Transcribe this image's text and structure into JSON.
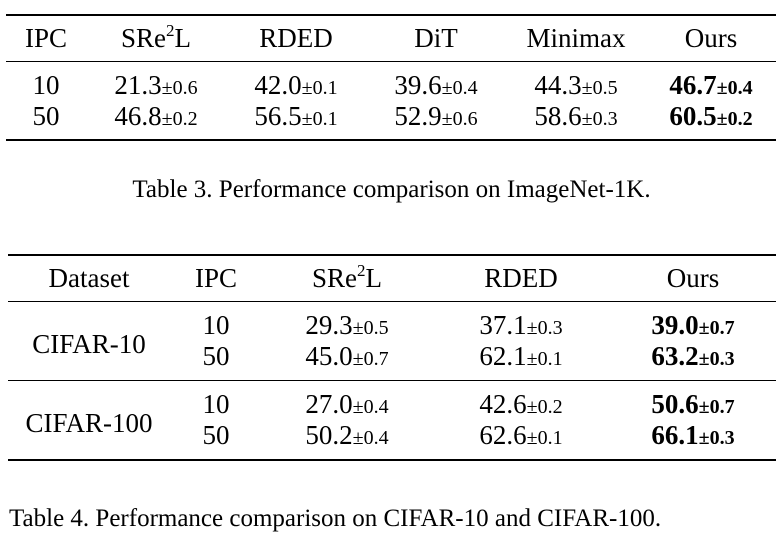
{
  "table3": {
    "headers": [
      "IPC",
      "SRe",
      "2",
      "L",
      "RDED",
      "DiT",
      "Minimax",
      "Ours"
    ],
    "rows": [
      {
        "ipc": "10",
        "cells": [
          {
            "v": "21.3",
            "s": "±0.6"
          },
          {
            "v": "42.0",
            "s": "±0.1"
          },
          {
            "v": "39.6",
            "s": "±0.4"
          },
          {
            "v": "44.3",
            "s": "±0.5"
          },
          {
            "v": "46.7",
            "s": "±0.4"
          }
        ]
      },
      {
        "ipc": "50",
        "cells": [
          {
            "v": "46.8",
            "s": "±0.2"
          },
          {
            "v": "56.5",
            "s": "±0.1"
          },
          {
            "v": "52.9",
            "s": "±0.6"
          },
          {
            "v": "58.6",
            "s": "±0.3"
          },
          {
            "v": "60.5",
            "s": "±0.2"
          }
        ]
      }
    ],
    "caption": "Table 3. Performance comparison on ImageNet-1K."
  },
  "table4": {
    "headers": [
      "Dataset",
      "IPC",
      "SRe",
      "2",
      "L",
      "RDED",
      "Ours"
    ],
    "groups": [
      {
        "dataset": "CIFAR-10",
        "rows": [
          {
            "ipc": "10",
            "cells": [
              {
                "v": "29.3",
                "s": "±0.5"
              },
              {
                "v": "37.1",
                "s": "±0.3"
              },
              {
                "v": "39.0",
                "s": "±0.7"
              }
            ]
          },
          {
            "ipc": "50",
            "cells": [
              {
                "v": "45.0",
                "s": "±0.7"
              },
              {
                "v": "62.1",
                "s": "±0.1"
              },
              {
                "v": "63.2",
                "s": "±0.3"
              }
            ]
          }
        ]
      },
      {
        "dataset": "CIFAR-100",
        "rows": [
          {
            "ipc": "10",
            "cells": [
              {
                "v": "27.0",
                "s": "±0.4"
              },
              {
                "v": "42.6",
                "s": "±0.2"
              },
              {
                "v": "50.6",
                "s": "±0.7"
              }
            ]
          },
          {
            "ipc": "50",
            "cells": [
              {
                "v": "50.2",
                "s": "±0.4"
              },
              {
                "v": "62.6",
                "s": "±0.1"
              },
              {
                "v": "66.1",
                "s": "±0.3"
              }
            ]
          }
        ]
      }
    ],
    "caption": "Table 4. Performance comparison on CIFAR-10 and CIFAR-100."
  }
}
